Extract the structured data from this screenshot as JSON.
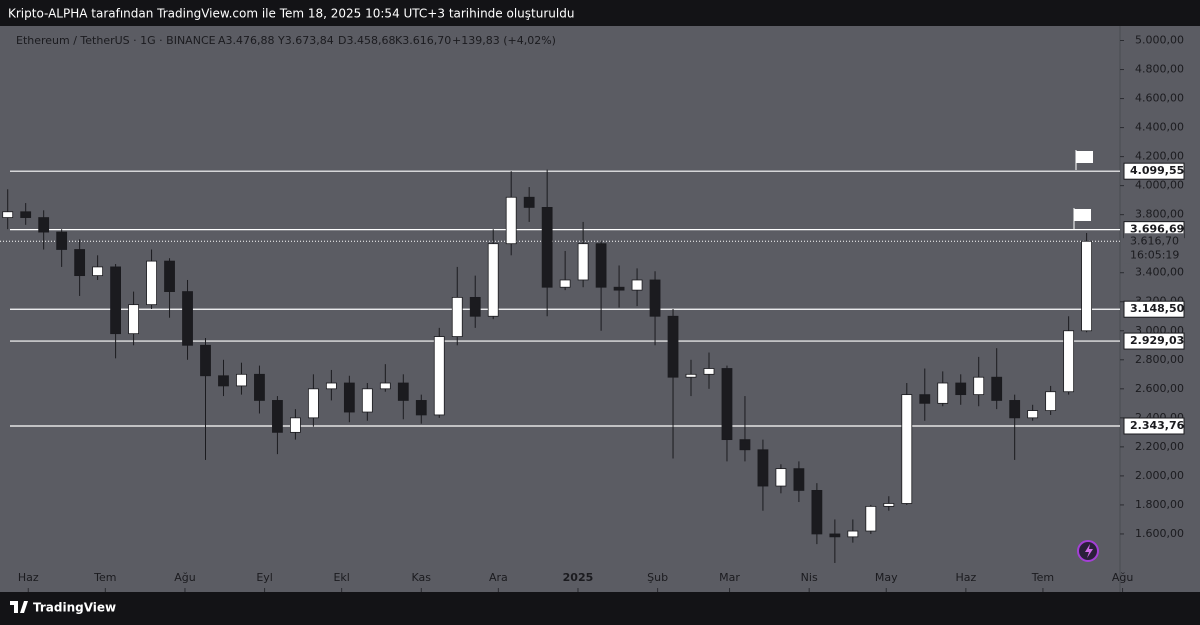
{
  "header": {
    "caption": "Kripto-ALPHA tarafından TradingView.com ile Tem 18, 2025 10:54 UTC+3 tarihinde oluşturuldu",
    "symbol": "Ethereum / TetherUS · 1G · BINANCE",
    "open": "A3.476,88",
    "high": "Y3.673,84",
    "low": "D3.458,68",
    "close": "K3.616,70",
    "change": "+139,83 (+4,02%)"
  },
  "footer": {
    "brand": "TradingView"
  },
  "chart_data": {
    "type": "candlestick",
    "up_color": "#ffffff",
    "down_color": "#1b1b1f",
    "x": [
      -8,
      -1,
      6,
      13,
      20,
      27,
      34,
      41,
      48,
      55,
      62,
      69,
      76,
      83,
      90,
      97,
      104,
      111,
      118,
      125,
      132,
      139,
      146,
      153,
      160,
      167,
      174,
      181,
      188,
      195,
      202,
      209,
      216,
      223,
      230,
      237,
      244,
      251,
      258,
      265,
      272,
      279,
      286,
      293,
      300,
      307,
      314,
      321,
      328,
      335,
      342,
      349,
      356,
      363,
      370,
      377,
      384,
      391,
      398,
      405,
      412
    ],
    "ohlc": [
      [
        3780,
        3975,
        3700,
        3820
      ],
      [
        3820,
        3880,
        3730,
        3780
      ],
      [
        3780,
        3830,
        3560,
        3680
      ],
      [
        3680,
        3700,
        3440,
        3560
      ],
      [
        3560,
        3630,
        3240,
        3380
      ],
      [
        3380,
        3520,
        3350,
        3440
      ],
      [
        3440,
        3460,
        2810,
        2980
      ],
      [
        2980,
        3270,
        2900,
        3180
      ],
      [
        3180,
        3560,
        3150,
        3480
      ],
      [
        3480,
        3500,
        3090,
        3270
      ],
      [
        3270,
        3350,
        2800,
        2900
      ],
      [
        2900,
        2950,
        2110,
        2690
      ],
      [
        2690,
        2800,
        2550,
        2620
      ],
      [
        2620,
        2780,
        2560,
        2700
      ],
      [
        2700,
        2760,
        2430,
        2520
      ],
      [
        2520,
        2550,
        2150,
        2300
      ],
      [
        2300,
        2460,
        2250,
        2400
      ],
      [
        2400,
        2700,
        2340,
        2600
      ],
      [
        2600,
        2730,
        2520,
        2640
      ],
      [
        2640,
        2690,
        2370,
        2440
      ],
      [
        2440,
        2640,
        2380,
        2600
      ],
      [
        2600,
        2770,
        2580,
        2640
      ],
      [
        2640,
        2700,
        2390,
        2520
      ],
      [
        2520,
        2560,
        2360,
        2420
      ],
      [
        2420,
        3020,
        2400,
        2960
      ],
      [
        2960,
        3440,
        2900,
        3230
      ],
      [
        3230,
        3380,
        3020,
        3100
      ],
      [
        3100,
        3700,
        3080,
        3600
      ],
      [
        3600,
        4100,
        3520,
        3920
      ],
      [
        3920,
        3990,
        3750,
        3850
      ],
      [
        3850,
        4110,
        3100,
        3300
      ],
      [
        3300,
        3550,
        3280,
        3350
      ],
      [
        3350,
        3750,
        3300,
        3600
      ],
      [
        3600,
        3620,
        3000,
        3300
      ],
      [
        3300,
        3450,
        3160,
        3280
      ],
      [
        3280,
        3430,
        3170,
        3350
      ],
      [
        3350,
        3410,
        2900,
        3100
      ],
      [
        3100,
        3150,
        2120,
        2680
      ],
      [
        2680,
        2800,
        2550,
        2700
      ],
      [
        2700,
        2850,
        2600,
        2740
      ],
      [
        2740,
        2760,
        2100,
        2250
      ],
      [
        2250,
        2550,
        2100,
        2180
      ],
      [
        2180,
        2250,
        1760,
        1930
      ],
      [
        1930,
        2080,
        1880,
        2050
      ],
      [
        2050,
        2100,
        1820,
        1900
      ],
      [
        1900,
        1950,
        1530,
        1600
      ],
      [
        1600,
        1700,
        1400,
        1580
      ],
      [
        1580,
        1700,
        1540,
        1620
      ],
      [
        1620,
        1800,
        1600,
        1790
      ],
      [
        1790,
        1860,
        1760,
        1810
      ],
      [
        1810,
        2640,
        1800,
        2560
      ],
      [
        2560,
        2740,
        2380,
        2500
      ],
      [
        2500,
        2720,
        2480,
        2640
      ],
      [
        2640,
        2700,
        2490,
        2560
      ],
      [
        2560,
        2820,
        2480,
        2680
      ],
      [
        2680,
        2880,
        2460,
        2520
      ],
      [
        2520,
        2560,
        2110,
        2400
      ],
      [
        2400,
        2490,
        2380,
        2450
      ],
      [
        2450,
        2620,
        2420,
        2580
      ],
      [
        2580,
        3100,
        2560,
        3000
      ],
      [
        3000,
        3673.84,
        2990,
        3616.7
      ]
    ],
    "xlim": [
      -11,
      425
    ],
    "xticks": [
      {
        "value": 0,
        "label": "Haz"
      },
      {
        "value": 30,
        "label": "Tem"
      },
      {
        "value": 61,
        "label": "Ağu"
      },
      {
        "value": 92,
        "label": "Eyl"
      },
      {
        "value": 122,
        "label": "Ekl"
      },
      {
        "value": 153,
        "label": "Kas"
      },
      {
        "value": 183,
        "label": "Ara"
      },
      {
        "value": 214,
        "label": "2025"
      },
      {
        "value": 245,
        "label": "Şub"
      },
      {
        "value": 273,
        "label": "Mar"
      },
      {
        "value": 304,
        "label": "Nis"
      },
      {
        "value": 334,
        "label": "May"
      },
      {
        "value": 365,
        "label": "Haz"
      },
      {
        "value": 395,
        "label": "Tem"
      },
      {
        "value": 426,
        "label": "Ağu"
      }
    ],
    "ylim": [
      1200,
      5100
    ],
    "yticks": [
      {
        "value": 1600,
        "label": "1.600,00"
      },
      {
        "value": 1800,
        "label": "1.800,00"
      },
      {
        "value": 2000,
        "label": "2.000,00"
      },
      {
        "value": 2200,
        "label": "2.200,00"
      },
      {
        "value": 2400,
        "label": "2.400,00"
      },
      {
        "value": 2600,
        "label": "2.600,00"
      },
      {
        "value": 2800,
        "label": "2.800,00"
      },
      {
        "value": 3000,
        "label": "3.000,00"
      },
      {
        "value": 3200,
        "label": "3.200,00"
      },
      {
        "value": 3400,
        "label": "3.400,00"
      },
      {
        "value": 3800,
        "label": "3.800,00"
      },
      {
        "value": 4000,
        "label": "4.000,00"
      },
      {
        "value": 4200,
        "label": "4.200,00"
      },
      {
        "value": 4400,
        "label": "4.400,00"
      },
      {
        "value": 4600,
        "label": "4.600,00"
      },
      {
        "value": 4800,
        "label": "4.800,00"
      },
      {
        "value": 5000,
        "label": "5.000,00"
      }
    ],
    "levels": [
      {
        "value": 4099.55,
        "label": "4.099,55"
      },
      {
        "value": 3696.69,
        "label": "3.696,69"
      },
      {
        "value": 3148.5,
        "label": "3.148,50"
      },
      {
        "value": 2929.03,
        "label": "2.929,03"
      },
      {
        "value": 2343.76,
        "label": "2.343,76"
      }
    ],
    "last_price": {
      "value": 3616.7,
      "label": "3.616,70",
      "countdown": "16:05:19"
    }
  }
}
